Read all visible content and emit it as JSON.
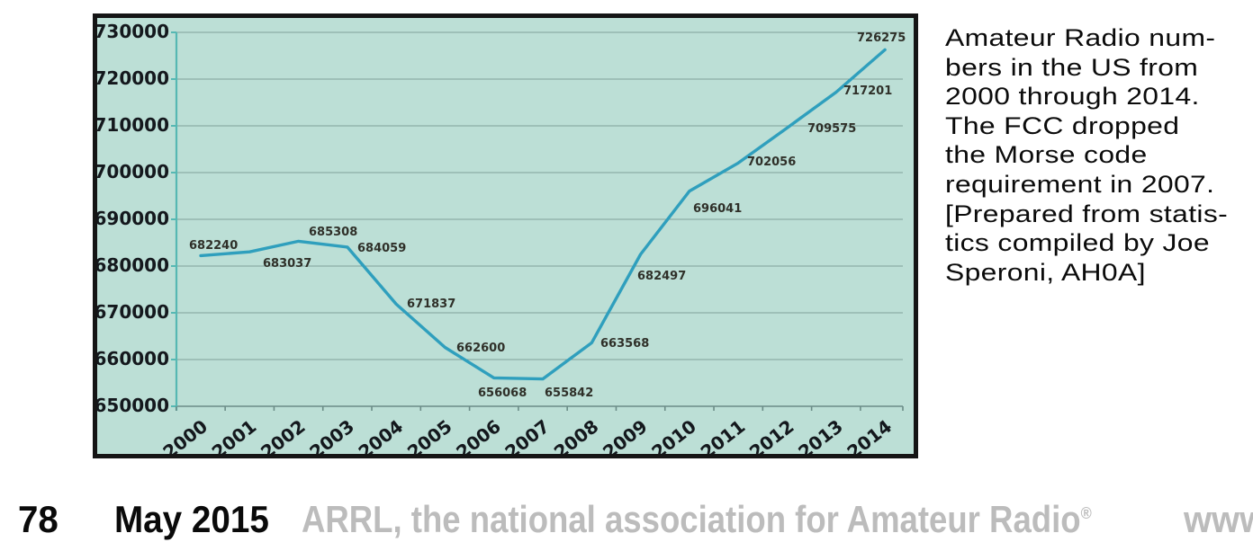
{
  "figure": {
    "caption_text": "Amateur Radio numbers in the US from 2000 through 2014. The FCC dropped the Morse code requirement in 2007. [Prepared from statistics compiled by Joe Speroni, AH0A]",
    "caption_lines": [
      "Amateur Radio num-",
      "bers in the US from",
      "2000 through 2014.",
      "The FCC dropped",
      "the Morse code",
      "requirement in 2007.",
      "[Prepared from statis-",
      "tics compiled by Joe",
      "Speroni, AH0A]"
    ]
  },
  "chart_data": {
    "type": "line",
    "title": "",
    "xlabel": "",
    "ylabel": "",
    "x": [
      2000,
      2001,
      2002,
      2003,
      2004,
      2005,
      2006,
      2007,
      2008,
      2009,
      2010,
      2011,
      2012,
      2013,
      2014
    ],
    "x_tick_labels": [
      "2000",
      "2001",
      "2002",
      "2003",
      "2004",
      "2005",
      "2006",
      "2007",
      "2008",
      "2009",
      "2010",
      "2011",
      "2012",
      "2013",
      "2014"
    ],
    "values": [
      682240,
      683037,
      685308,
      684059,
      671837,
      662600,
      656068,
      655842,
      663568,
      682497,
      696041,
      702056,
      709575,
      717201,
      726275
    ],
    "point_labels": [
      "682240",
      "683037",
      "685308",
      "684059",
      "671837",
      "662600",
      "656068",
      "655842",
      "663568",
      "682497",
      "696041",
      "702056",
      "709575",
      "717201",
      "726275"
    ],
    "ylim": [
      650000,
      730000
    ],
    "y_ticks": [
      650000,
      660000,
      670000,
      680000,
      690000,
      700000,
      710000,
      720000,
      730000
    ],
    "y_tick_labels": [
      "650000",
      "660000",
      "670000",
      "680000",
      "690000",
      "700000",
      "710000",
      "720000",
      "730000"
    ],
    "grid": true,
    "legend": "none",
    "colors": {
      "line": "#2f9fbd",
      "plot_bg": "#bcdfd6",
      "grid": "#7fa09b",
      "y_axis": "#56b8b3",
      "x_axis": "#6b8c87",
      "border": "#151515",
      "point_label_text": "#2f3029",
      "tick_label_text": "#14181d"
    }
  },
  "footer": {
    "page_number": "78",
    "issue_date": "May 2015",
    "publisher": "ARRL, the national association for Amateur Radio",
    "trademark": "®",
    "url_fragment": "www"
  }
}
